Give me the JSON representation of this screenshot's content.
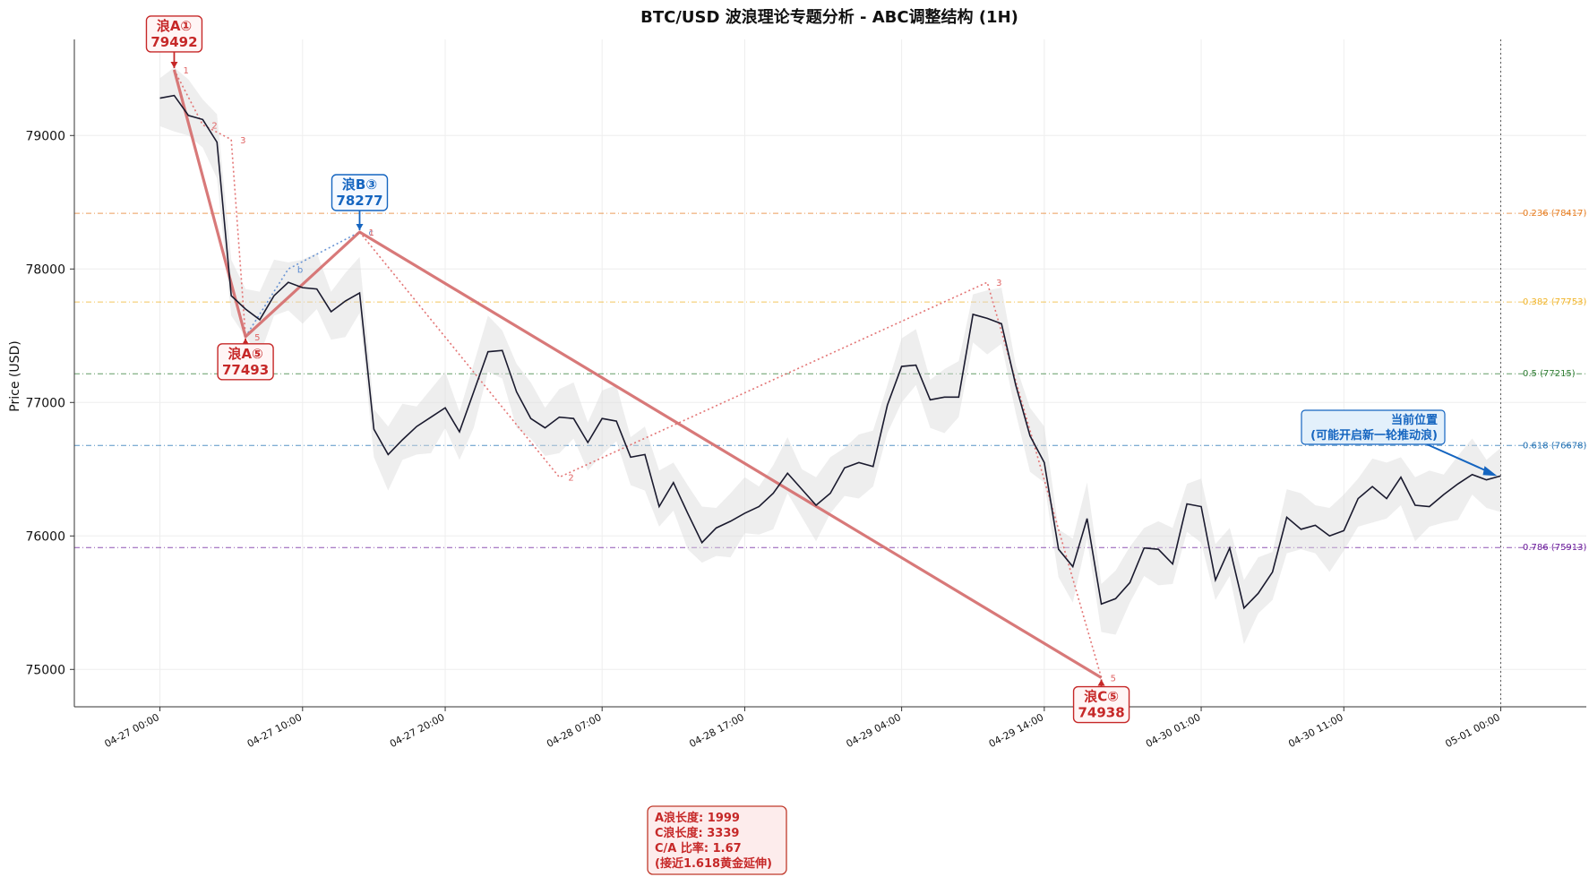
{
  "chart_data": {
    "type": "line",
    "title": "BTC/USD 波浪理论专题分析 - ABC调整结构 (1H)",
    "xlabel": "",
    "ylabel": "Price (USD)",
    "ylim": [
      74720,
      79720
    ],
    "xlim": [
      -6,
      100
    ],
    "x_ticks": [
      {
        "x": 0,
        "label": "04-27 00:00"
      },
      {
        "x": 10,
        "label": "04-27 10:00"
      },
      {
        "x": 20,
        "label": "04-27 20:00"
      },
      {
        "x": 31,
        "label": "04-28 07:00"
      },
      {
        "x": 41,
        "label": "04-28 17:00"
      },
      {
        "x": 52,
        "label": "04-29 04:00"
      },
      {
        "x": 62,
        "label": "04-29 14:00"
      },
      {
        "x": 73,
        "label": "04-30 01:00"
      },
      {
        "x": 83,
        "label": "04-30 11:00"
      },
      {
        "x": 94,
        "label": "05-01 00:00"
      }
    ],
    "y_ticks": [
      75000,
      76000,
      77000,
      78000,
      79000
    ],
    "grid": true,
    "series": [
      {
        "values": [
          [
            0,
            79280
          ],
          [
            1,
            79300
          ],
          [
            2,
            79150
          ],
          [
            3,
            79120
          ],
          [
            4,
            78950
          ],
          [
            5,
            77800
          ],
          [
            6,
            77700
          ],
          [
            7,
            77620
          ],
          [
            8,
            77800
          ],
          [
            9,
            77900
          ],
          [
            10,
            77860
          ],
          [
            11,
            77850
          ],
          [
            12,
            77680
          ],
          [
            13,
            77760
          ],
          [
            14,
            77820
          ],
          [
            15,
            76800
          ],
          [
            16,
            76610
          ],
          [
            17,
            76720
          ],
          [
            18,
            76820
          ],
          [
            19,
            76890
          ],
          [
            20,
            76960
          ],
          [
            21,
            76780
          ],
          [
            22,
            77080
          ],
          [
            23,
            77380
          ],
          [
            24,
            77390
          ],
          [
            25,
            77080
          ],
          [
            26,
            76880
          ],
          [
            27,
            76810
          ],
          [
            28,
            76890
          ],
          [
            29,
            76880
          ],
          [
            30,
            76700
          ],
          [
            31,
            76880
          ],
          [
            32,
            76860
          ],
          [
            33,
            76590
          ],
          [
            34,
            76610
          ],
          [
            35,
            76220
          ],
          [
            36,
            76400
          ],
          [
            37,
            76170
          ],
          [
            38,
            75950
          ],
          [
            39,
            76060
          ],
          [
            40,
            76110
          ],
          [
            41,
            76170
          ],
          [
            42,
            76220
          ],
          [
            43,
            76320
          ],
          [
            44,
            76470
          ],
          [
            45,
            76350
          ],
          [
            46,
            76230
          ],
          [
            47,
            76320
          ],
          [
            48,
            76510
          ],
          [
            49,
            76550
          ],
          [
            50,
            76520
          ],
          [
            51,
            76980
          ],
          [
            52,
            77270
          ],
          [
            53,
            77280
          ],
          [
            54,
            77020
          ],
          [
            55,
            77040
          ],
          [
            56,
            77040
          ],
          [
            57,
            77660
          ],
          [
            58,
            77630
          ],
          [
            59,
            77590
          ],
          [
            60,
            77130
          ],
          [
            61,
            76750
          ],
          [
            62,
            76550
          ],
          [
            63,
            75900
          ],
          [
            64,
            75770
          ],
          [
            65,
            76130
          ],
          [
            66,
            75490
          ],
          [
            67,
            75530
          ],
          [
            68,
            75650
          ],
          [
            69,
            75910
          ],
          [
            70,
            75900
          ],
          [
            71,
            75790
          ],
          [
            72,
            76240
          ],
          [
            73,
            76220
          ],
          [
            74,
            75670
          ],
          [
            75,
            75910
          ],
          [
            76,
            75460
          ],
          [
            77,
            75570
          ],
          [
            78,
            75730
          ],
          [
            79,
            76140
          ],
          [
            80,
            76050
          ],
          [
            81,
            76080
          ],
          [
            82,
            76000
          ],
          [
            83,
            76040
          ],
          [
            84,
            76280
          ],
          [
            85,
            76370
          ],
          [
            86,
            76280
          ],
          [
            87,
            76440
          ],
          [
            88,
            76230
          ],
          [
            89,
            76220
          ],
          [
            90,
            76310
          ],
          [
            91,
            76390
          ],
          [
            92,
            76460
          ],
          [
            93,
            76420
          ],
          [
            94,
            76450
          ]
        ]
      }
    ],
    "band_spread": 150,
    "fib_levels": [
      {
        "label": "0.236 (78417)",
        "value": 78417,
        "color": "#e67e22"
      },
      {
        "label": "0.382 (77753)",
        "value": 77753,
        "color": "#f0b429"
      },
      {
        "label": "0.5 (77215)",
        "value": 77215,
        "color": "#2e7d32"
      },
      {
        "label": "0.618 (76678)",
        "value": 76678,
        "color": "#1f6fb2"
      },
      {
        "label": "0.786 (75913)",
        "value": 75913,
        "color": "#6a1b9a"
      }
    ],
    "abc_path": [
      [
        1,
        79492
      ],
      [
        6,
        77493
      ],
      [
        14,
        78277
      ],
      [
        66,
        74938
      ]
    ],
    "sub_waves": [
      {
        "color": "#e06666",
        "points": [
          [
            1,
            79492,
            "1"
          ],
          [
            3,
            79080,
            "2"
          ],
          [
            5,
            78970,
            "3"
          ],
          [
            6,
            77493,
            "5"
          ]
        ]
      },
      {
        "color": "#5b8bd0",
        "points": [
          [
            6,
            77493,
            ""
          ],
          [
            9,
            78000,
            "b"
          ],
          [
            14,
            78277,
            "c"
          ]
        ]
      },
      {
        "color": "#e06666",
        "points": [
          [
            14,
            78277,
            "1"
          ],
          [
            28,
            76440,
            "2"
          ],
          [
            58,
            77900,
            "3"
          ],
          [
            66,
            74938,
            "5"
          ]
        ]
      }
    ],
    "current_x": 94,
    "annotations": [
      {
        "id": "a1",
        "line1": "浪A①",
        "line2": "79492",
        "color": "#c62828",
        "x": 1,
        "y": 79492
      },
      {
        "id": "a5",
        "line1": "浪A⑤",
        "line2": "77493",
        "color": "#c62828",
        "x": 6,
        "y": 77493
      },
      {
        "id": "b3",
        "line1": "浪B③",
        "line2": "78277",
        "color": "#1565c0",
        "x": 14,
        "y": 78277
      },
      {
        "id": "c5",
        "line1": "浪C⑤",
        "line2": "74938",
        "color": "#c62828",
        "x": 66,
        "y": 74938
      }
    ],
    "current_note": {
      "line1": "当前位置",
      "line2": "(可能开启新一轮推动浪)",
      "x": 94,
      "y": 76450
    },
    "stats": [
      "A浪长度: 1999",
      "C浪长度: 3339",
      "C/A 比率: 1.67",
      "(接近1.618黄金延伸)"
    ]
  },
  "colors": {
    "price_line": "#1a1a2e",
    "band": "#d9d9d9",
    "abc_line": "#d46a6a",
    "grid": "#eeeeee",
    "axis": "#333333"
  }
}
